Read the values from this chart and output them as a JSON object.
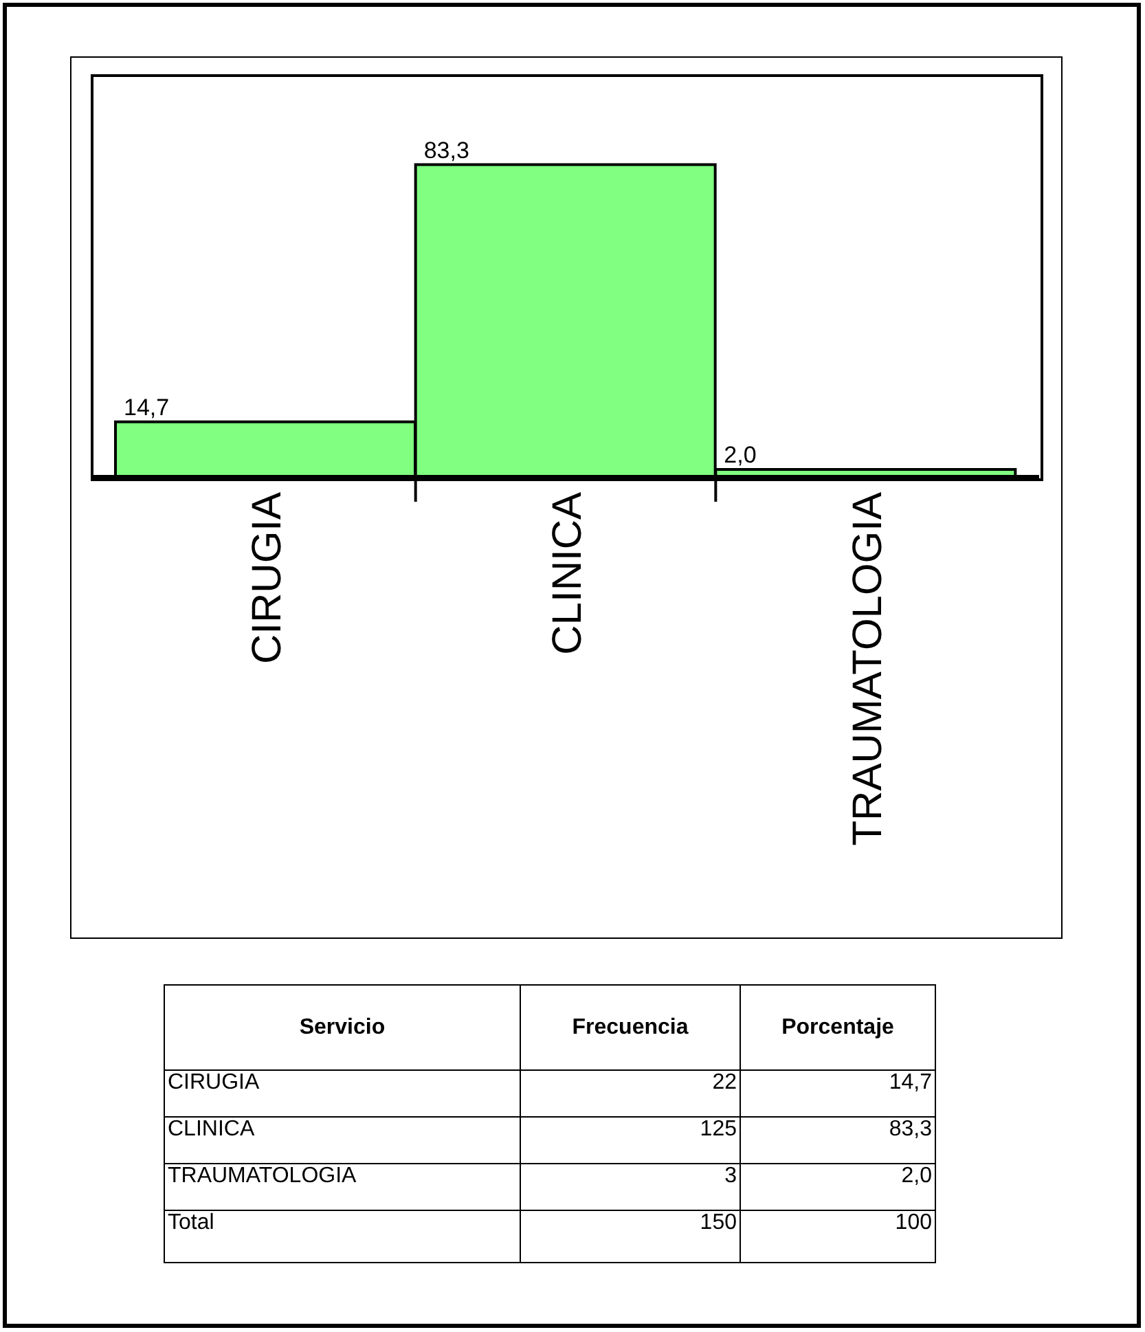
{
  "chart_data": {
    "type": "bar",
    "categories": [
      "CIRUGIA",
      "CLINICA",
      "TRAUMATOLOGIA"
    ],
    "values": [
      14.7,
      83.3,
      2.0
    ],
    "value_labels": [
      "14,7",
      "83,3",
      "2,0"
    ],
    "color": "#80ff80",
    "annotations": [
      "Servicio",
      "Frecuencia",
      "Porcentaje",
      "CIRUGIA",
      "22",
      "14,7",
      "CLINICA",
      "125",
      "83,3",
      "TRAUMATOLOGIA",
      "3",
      "2,0",
      "Total",
      "150",
      "100"
    ]
  }
}
